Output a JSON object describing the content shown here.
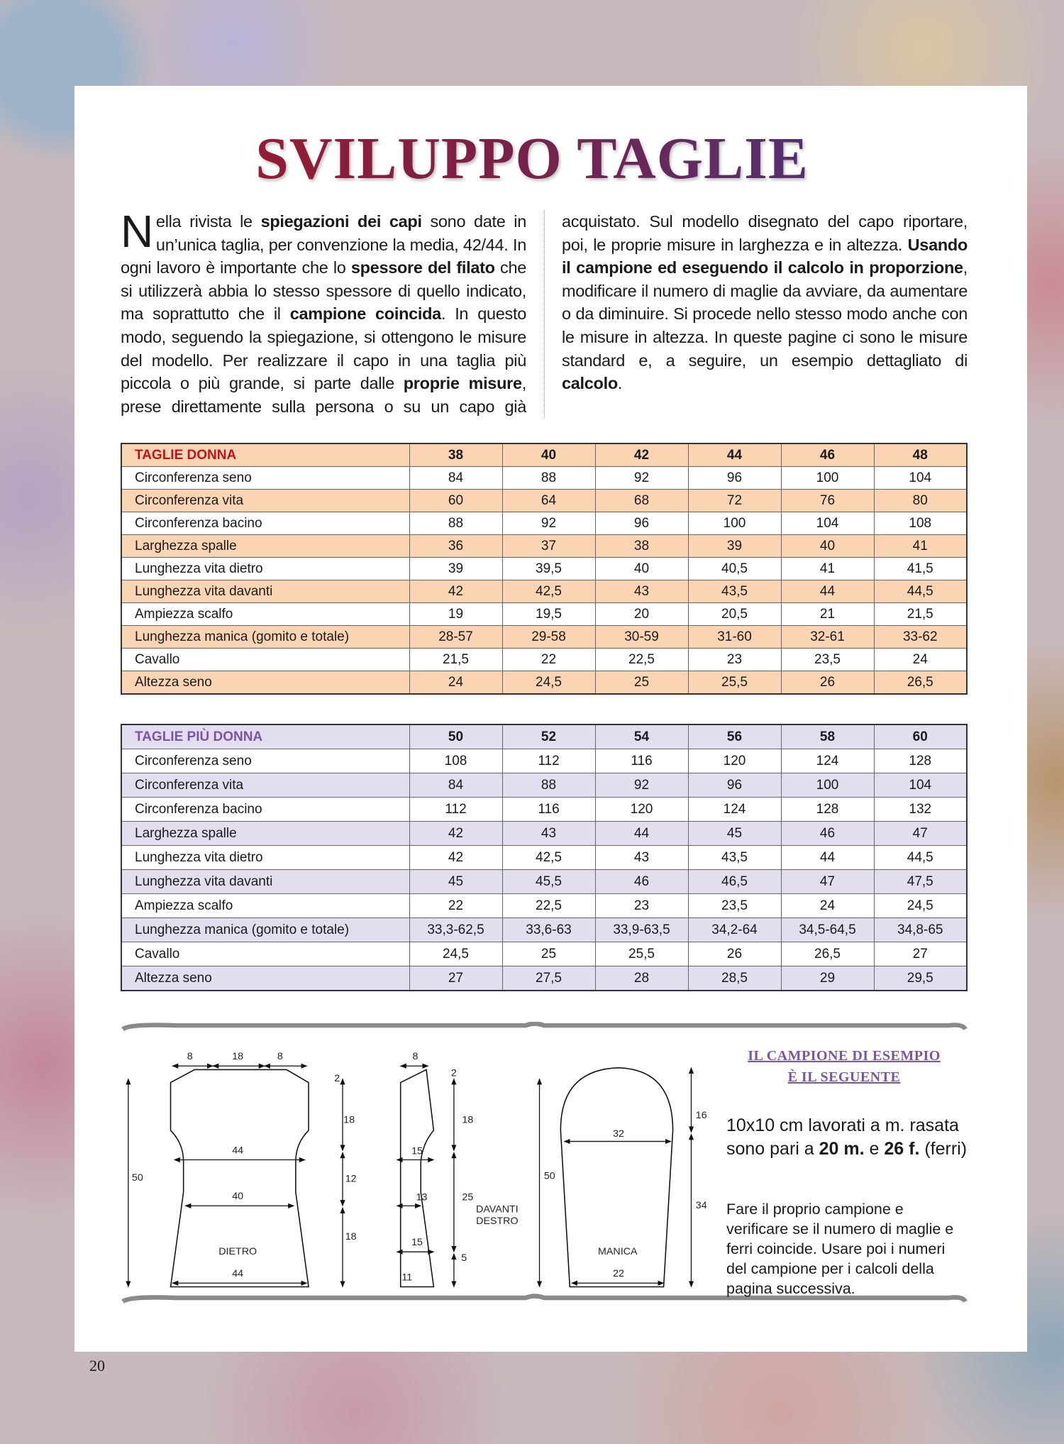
{
  "title": "SVILUPPO TAGLIE",
  "intro": {
    "drop_cap": "N",
    "runs": [
      {
        "text": "ella rivista le ",
        "bold": false
      },
      {
        "text": "spiegazioni dei capi",
        "bold": true
      },
      {
        "text": " sono date in un’unica taglia, per convenzione la media, 42/44. In ogni lavoro è importante che lo ",
        "bold": false
      },
      {
        "text": "spessore del filato",
        "bold": true
      },
      {
        "text": " che si utilizzerà abbia lo stesso spessore di quello indicato, ma soprattutto che il ",
        "bold": false
      },
      {
        "text": "campione coincida",
        "bold": true
      },
      {
        "text": ". In questo modo, seguendo la spiegazione, si ottengono le misure del modello. Per realizzare il capo in una taglia più piccola o più grande, si parte dalle ",
        "bold": false
      },
      {
        "text": "proprie misure",
        "bold": true
      },
      {
        "text": ", prese direttamente sulla persona o su un capo già acquistato. Sul modello disegnato del capo riportare, poi, le proprie misure in larghezza e in altezza. ",
        "bold": false
      },
      {
        "text": "Usando il campione ed eseguendo il calcolo in proporzione",
        "bold": true
      },
      {
        "text": ", modificare il numero di maglie da avviare, da aumentare o da diminuire. Si procede nello stesso modo anche con le misure in altezza. In queste pagine ci sono le misure standard e, a seguire, un esempio dettagliato di ",
        "bold": false
      },
      {
        "text": "calcolo",
        "bold": true
      },
      {
        "text": ".",
        "bold": false
      }
    ]
  },
  "tables": [
    {
      "header": [
        "TAGLIE DONNA",
        "38",
        "40",
        "42",
        "44",
        "46",
        "48"
      ],
      "rows": [
        [
          "Circonferenza seno",
          "84",
          "88",
          "92",
          "96",
          "100",
          "104"
        ],
        [
          "Circonferenza vita",
          "60",
          "64",
          "68",
          "72",
          "76",
          "80"
        ],
        [
          "Circonferenza bacino",
          "88",
          "92",
          "96",
          "100",
          "104",
          "108"
        ],
        [
          "Larghezza spalle",
          "36",
          "37",
          "38",
          "39",
          "40",
          "41"
        ],
        [
          "Lunghezza vita dietro",
          "39",
          "39,5",
          "40",
          "40,5",
          "41",
          "41,5"
        ],
        [
          "Lunghezza vita davanti",
          "42",
          "42,5",
          "43",
          "43,5",
          "44",
          "44,5"
        ],
        [
          "Ampiezza scalfo",
          "19",
          "19,5",
          "20",
          "20,5",
          "21",
          "21,5"
        ],
        [
          "Lunghezza manica (gomito e totale)",
          "28-57",
          "29-58",
          "30-59",
          "31-60",
          "32-61",
          "33-62"
        ],
        [
          "Cavallo",
          "21,5",
          "22",
          "22,5",
          "23",
          "23,5",
          "24"
        ],
        [
          "Altezza seno",
          "24",
          "24,5",
          "25",
          "25,5",
          "26",
          "26,5"
        ]
      ]
    },
    {
      "header": [
        "TAGLIE PIÙ DONNA",
        "50",
        "52",
        "54",
        "56",
        "58",
        "60"
      ],
      "rows": [
        [
          "Circonferenza seno",
          "108",
          "112",
          "116",
          "120",
          "124",
          "128"
        ],
        [
          "Circonferenza vita",
          "84",
          "88",
          "92",
          "96",
          "100",
          "104"
        ],
        [
          "Circonferenza bacino",
          "112",
          "116",
          "120",
          "124",
          "128",
          "132"
        ],
        [
          "Larghezza spalle",
          "42",
          "43",
          "44",
          "45",
          "46",
          "47"
        ],
        [
          "Lunghezza vita dietro",
          "42",
          "42,5",
          "43",
          "43,5",
          "44",
          "44,5"
        ],
        [
          "Lunghezza vita davanti",
          "45",
          "45,5",
          "46",
          "46,5",
          "47",
          "47,5"
        ],
        [
          "Ampiezza scalfo",
          "22",
          "22,5",
          "23",
          "23,5",
          "24",
          "24,5"
        ],
        [
          "Lunghezza manica (gomito e totale)",
          "33,3-62,5",
          "33,6-63",
          "33,9-63,5",
          "34,2-64",
          "34,5-64,5",
          "34,8-65"
        ],
        [
          "Cavallo",
          "24,5",
          "25",
          "25,5",
          "26",
          "26,5",
          "27"
        ],
        [
          "Altezza seno",
          "27",
          "27,5",
          "28",
          "28,5",
          "29",
          "29,5"
        ]
      ]
    }
  ],
  "diagram": {
    "labels": [
      "8",
      "18",
      "8",
      "50",
      "2",
      "18",
      "12",
      "18",
      "44",
      "40",
      "DIETRO",
      "44",
      "8",
      "2",
      "18",
      "15",
      "13",
      "25",
      "15",
      "5",
      "11",
      "DAVANTI",
      "DESTRO",
      "50",
      "32",
      "MANICA",
      "22",
      "16",
      "34"
    ]
  },
  "sample": {
    "heading": [
      "IL CAMPIONE DI ESEMPIO",
      "È IL SEGUENTE"
    ],
    "runs": [
      {
        "text": "10x10 cm lavorati a m. rasata sono pari a ",
        "bold": false
      },
      {
        "text": "20 m.",
        "bold": true
      },
      {
        "text": " e ",
        "bold": false
      },
      {
        "text": "26 f.",
        "bold": true
      },
      {
        "text": " (ferri)",
        "bold": false
      }
    ],
    "note": "Fare il proprio campione e verificare se il numero di maglie e ferri coincide. Usare poi i numeri del campione per i calcoli della pagina successiva."
  },
  "page_number": "20"
}
